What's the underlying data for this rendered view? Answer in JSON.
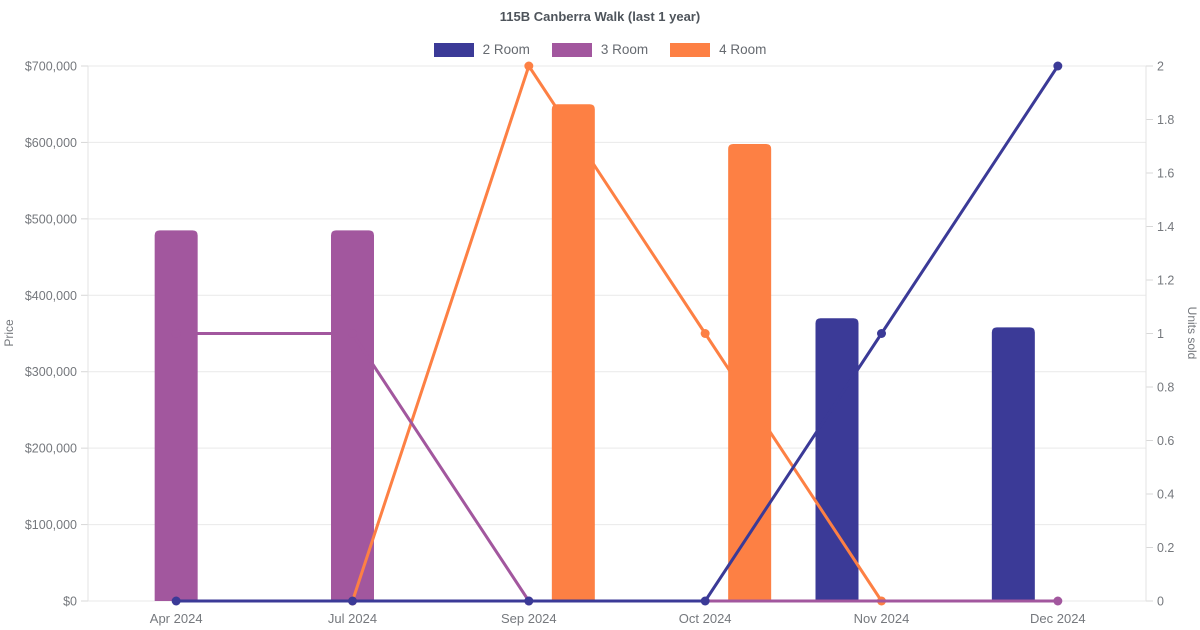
{
  "chart_data": {
    "type": "bar+line",
    "title": "115B Canberra Walk (last 1 year)",
    "categories": [
      "Apr 2024",
      "Jul 2024",
      "Sep 2024",
      "Oct 2024",
      "Nov 2024",
      "Dec 2024"
    ],
    "left_axis": {
      "title": "Price",
      "range": [
        0,
        700000
      ],
      "ticks": [
        "$0",
        "$100,000",
        "$200,000",
        "$300,000",
        "$400,000",
        "$500,000",
        "$600,000",
        "$700,000"
      ]
    },
    "right_axis": {
      "title": "Units sold",
      "range": [
        0,
        2
      ],
      "ticks": [
        "0",
        "0.2",
        "0.4",
        "0.6",
        "0.8",
        "1",
        "1.2",
        "1.4",
        "1.6",
        "1.8",
        "2"
      ]
    },
    "bar_series": [
      {
        "name": "2 Room",
        "color": "#3b3a97",
        "axis": "left",
        "prices": [
          null,
          null,
          null,
          null,
          370000,
          358000
        ]
      },
      {
        "name": "3 Room",
        "color": "#a2579e",
        "axis": "left",
        "prices": [
          485000,
          485000,
          null,
          null,
          null,
          null
        ]
      },
      {
        "name": "4 Room",
        "color": "#fd8044",
        "axis": "left",
        "prices": [
          null,
          null,
          650000,
          598000,
          null,
          null
        ]
      }
    ],
    "line_series": [
      {
        "name": "2 Room",
        "color": "#3b3a97",
        "axis": "right",
        "units": [
          0,
          0,
          0,
          0,
          1,
          2
        ]
      },
      {
        "name": "3 Room",
        "color": "#a2579e",
        "axis": "right",
        "units": [
          1,
          1,
          0,
          null,
          null,
          0
        ]
      },
      {
        "name": "4 Room",
        "color": "#fd8044",
        "axis": "right",
        "units": [
          null,
          0,
          2,
          1,
          0,
          null
        ]
      }
    ],
    "legend_position": "top",
    "grid": "horizontal-only"
  }
}
